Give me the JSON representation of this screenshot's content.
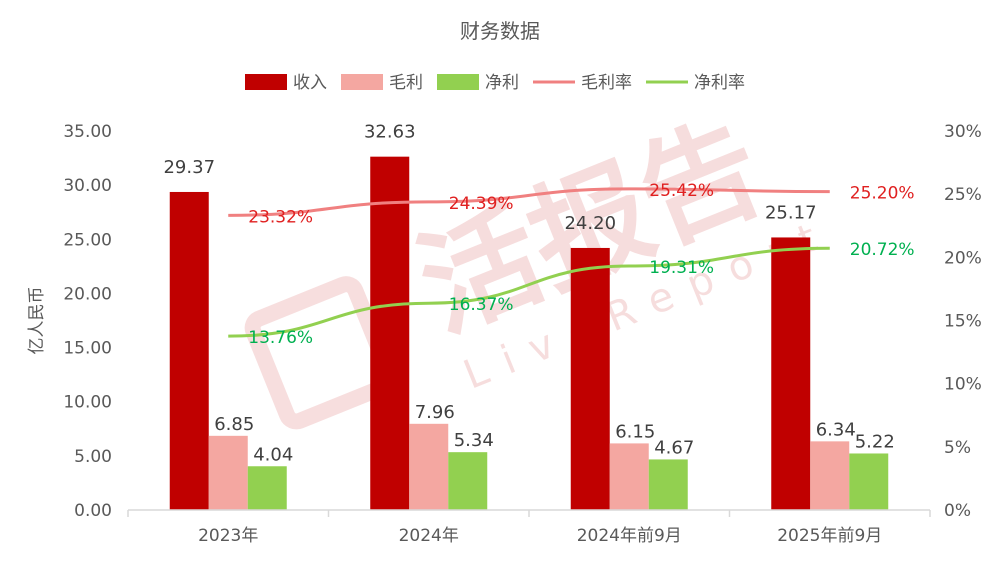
{
  "chart_data": {
    "type": "bar",
    "title": "财务数据",
    "ylabel": "亿人民币",
    "categories": [
      "2023年",
      "2024年",
      "2024年前9月",
      "2025年前9月"
    ],
    "ylim": [
      0,
      35
    ],
    "y_ticks": [
      "0.00",
      "5.00",
      "10.00",
      "15.00",
      "20.00",
      "25.00",
      "30.00",
      "35.00"
    ],
    "y2lim": [
      0,
      30
    ],
    "y2_ticks": [
      "0%",
      "5%",
      "10%",
      "15%",
      "20%",
      "25%",
      "30%"
    ],
    "legend_position": "top",
    "series": [
      {
        "name": "收入",
        "kind": "bar",
        "color": "#C00000",
        "values": [
          29.37,
          32.63,
          24.2,
          25.17
        ],
        "labels": [
          "29.37",
          "32.63",
          "24.20",
          "25.17"
        ]
      },
      {
        "name": "毛利",
        "kind": "bar",
        "color": "#F4A7A1",
        "values": [
          6.85,
          7.96,
          6.15,
          6.34
        ],
        "labels": [
          "6.85",
          "7.96",
          "6.15",
          "6.34"
        ]
      },
      {
        "name": "净利",
        "kind": "bar",
        "color": "#92D050",
        "values": [
          4.04,
          5.34,
          4.67,
          5.22
        ],
        "labels": [
          "4.04",
          "5.34",
          "4.67",
          "5.22"
        ]
      },
      {
        "name": "毛利率",
        "kind": "line",
        "axis": "right",
        "color": "#F08080",
        "label_color": "#E02020",
        "values": [
          23.32,
          24.39,
          25.42,
          25.2
        ],
        "labels": [
          "23.32%",
          "24.39%",
          "25.42%",
          "25.20%"
        ]
      },
      {
        "name": "净利率",
        "kind": "line",
        "axis": "right",
        "color": "#92D050",
        "label_color": "#00B050",
        "values": [
          13.76,
          16.37,
          19.31,
          20.72
        ],
        "labels": [
          "13.76%",
          "16.37%",
          "19.31%",
          "20.72%"
        ]
      }
    ],
    "watermark": {
      "main": "活报告",
      "sub": "LiveReport"
    }
  }
}
